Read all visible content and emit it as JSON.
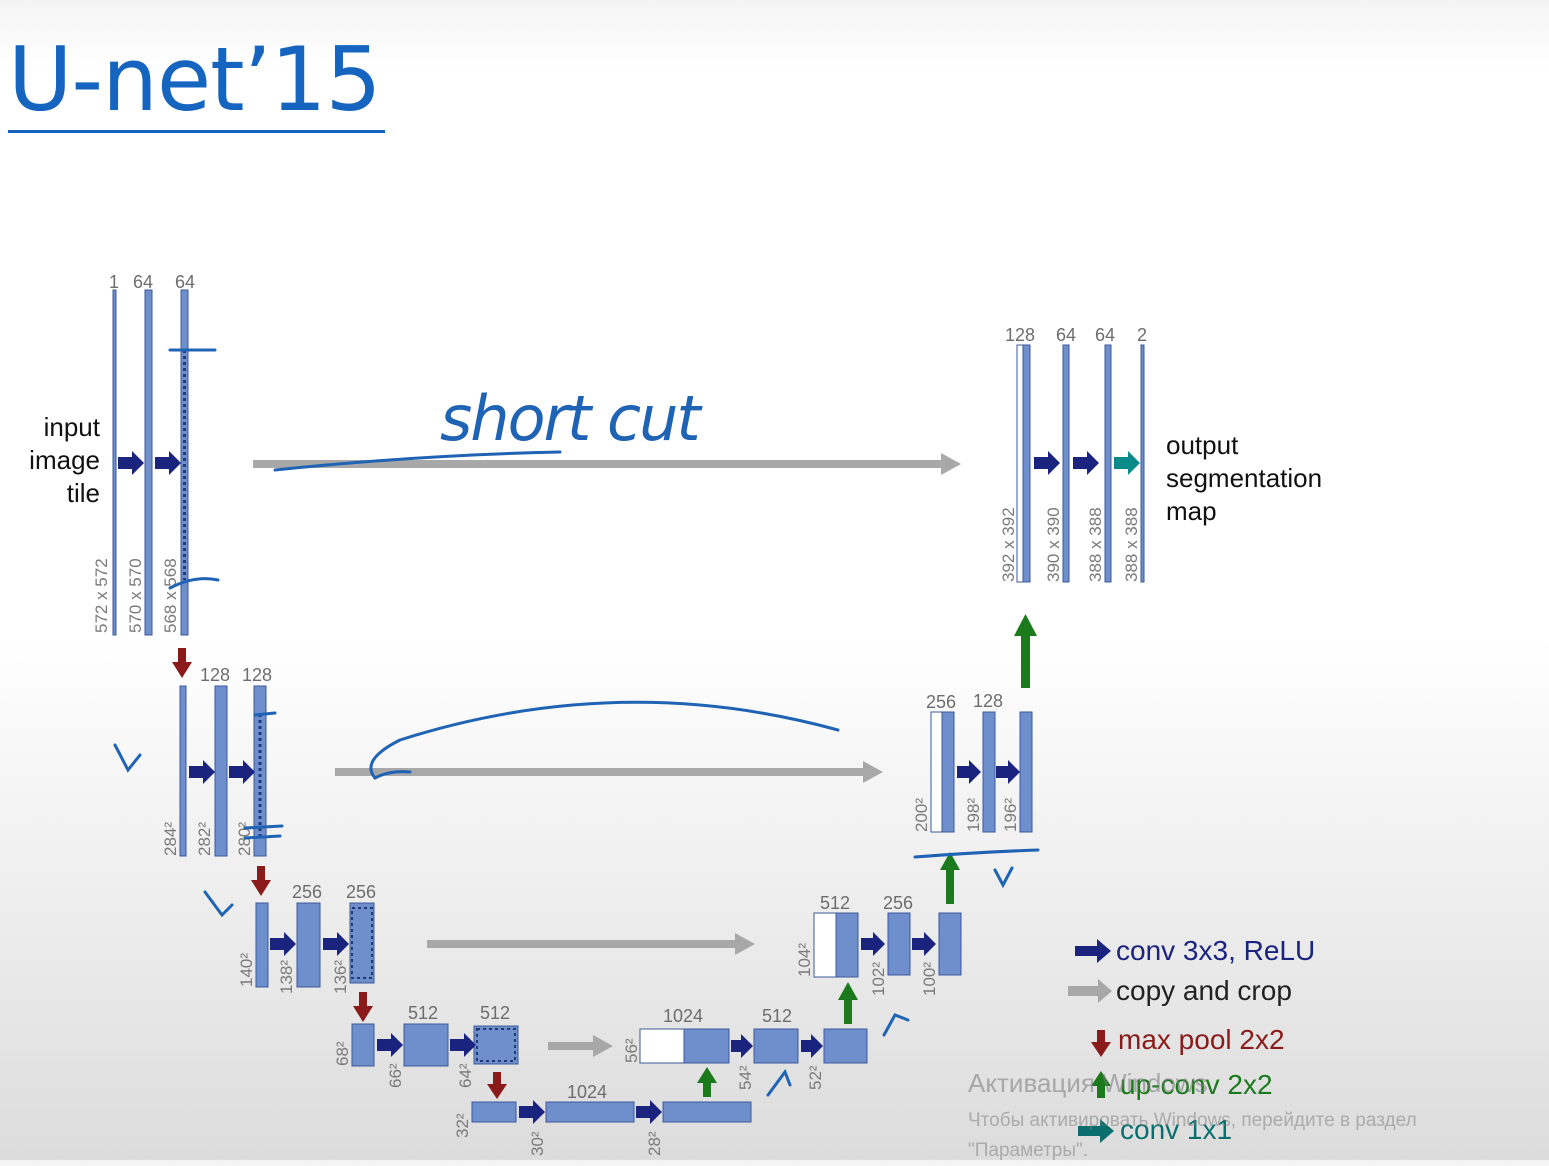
{
  "title": "U-net’15",
  "annotation": "short cut",
  "input_label": [
    "input",
    "image",
    "tile"
  ],
  "output_label": [
    "output",
    "segmentation",
    "map"
  ],
  "channels": {
    "l1": [
      "1",
      "64",
      "64"
    ],
    "l2": [
      "128",
      "128"
    ],
    "l3": [
      "256",
      "256"
    ],
    "l4": [
      "512",
      "512"
    ],
    "l5": [
      "1024"
    ],
    "r4": [
      "1024",
      "512"
    ],
    "r3": [
      "512",
      "256"
    ],
    "r2": [
      "256",
      "128"
    ],
    "r1": [
      "128",
      "64",
      "64",
      "2"
    ]
  },
  "dims": {
    "l1": [
      "572 x 572",
      "570 x 570",
      "568 x 568"
    ],
    "l2": [
      "284²",
      "282²",
      "280²"
    ],
    "l3": [
      "140²",
      "138²",
      "136²"
    ],
    "l4": [
      "68²",
      "66²",
      "64²"
    ],
    "l5": [
      "32²",
      "30²",
      "28²"
    ],
    "r4": [
      "56²",
      "54²",
      "52²"
    ],
    "r3": [
      "104²",
      "102²",
      "100²"
    ],
    "r2": [
      "200²",
      "198²",
      "196²"
    ],
    "r1": [
      "392 x 392",
      "390 x 390",
      "388 x 388",
      "388 x 388"
    ]
  },
  "legend": [
    {
      "label": "conv 3x3, ReLU",
      "color": "#1a237e",
      "icon": "right-arrow-icon"
    },
    {
      "label": "copy and crop",
      "color": "#9e9e9e",
      "icon": "right-arrow-icon"
    },
    {
      "label": "max pool 2x2",
      "color": "#8b1a1a",
      "icon": "down-arrow-icon"
    },
    {
      "label": "up-conv 2x2",
      "color": "#1b7a1b",
      "icon": "up-arrow-icon"
    },
    {
      "label": "conv 1x1",
      "color": "#0b6e6e",
      "icon": "right-arrow-icon"
    }
  ],
  "watermark": {
    "title": "Активация Windows",
    "body": "Чтобы активировать Windows, перейдите в раздел \"Параметры\"."
  },
  "colors": {
    "feature_map": "#6f8fcc",
    "feature_map_border": "#3c5a9a",
    "annotation_ink": "#1f63b5",
    "title": "#1565c0"
  }
}
